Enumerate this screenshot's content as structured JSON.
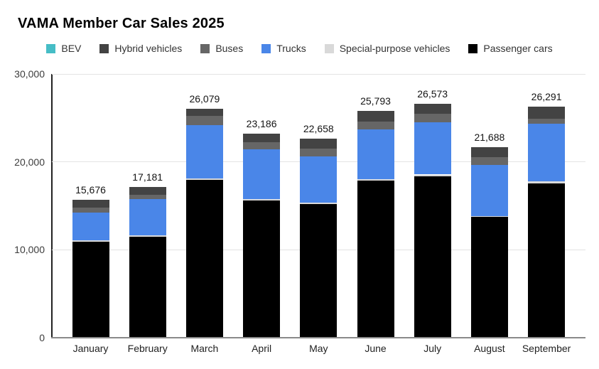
{
  "chart_data": {
    "type": "bar",
    "stacked": true,
    "title": "VAMA Member Car Sales 2025",
    "xlabel": "",
    "ylabel": "",
    "ylim": [
      0,
      30000
    ],
    "grid": true,
    "legend_position": "top",
    "categories": [
      "January",
      "February",
      "March",
      "April",
      "May",
      "June",
      "July",
      "August",
      "September"
    ],
    "totals": [
      15676,
      17181,
      26079,
      23186,
      22658,
      25793,
      26573,
      21688,
      26291
    ],
    "total_labels": [
      "15,676",
      "17,181",
      "26,079",
      "23,186",
      "22,658",
      "25,793",
      "26,573",
      "21,688",
      "26,291"
    ],
    "series": [
      {
        "name": "BEV",
        "color": "#46bdc6",
        "values": [
          0,
          0,
          0,
          0,
          0,
          0,
          0,
          0,
          0
        ]
      },
      {
        "name": "Hybrid vehicles",
        "color": "#434343",
        "values": [
          916,
          886,
          809,
          921,
          1148,
          1208,
          1078,
          1178,
          1421
        ]
      },
      {
        "name": "Buses",
        "color": "#666666",
        "values": [
          540,
          490,
          1130,
          865,
          860,
          915,
          1025,
          890,
          535
        ]
      },
      {
        "name": "Trucks",
        "color": "#4a86e8",
        "values": [
          3110,
          4170,
          6000,
          5670,
          5300,
          5610,
          5910,
          5780,
          6560
        ]
      },
      {
        "name": "Special-purpose vehicles",
        "color": "#d9d9d9",
        "values": [
          180,
          185,
          160,
          160,
          160,
          160,
          240,
          120,
          215
        ]
      },
      {
        "name": "Passenger cars",
        "color": "#000000",
        "values": [
          10930,
          11450,
          17980,
          15570,
          15190,
          17900,
          18320,
          13720,
          17560
        ]
      }
    ],
    "stack_order_bottom_to_top": [
      "Passenger cars",
      "Special-purpose vehicles",
      "Trucks",
      "Buses",
      "Hybrid vehicles",
      "BEV"
    ],
    "y_ticks": [
      {
        "value": 0,
        "label": "0"
      },
      {
        "value": 10000,
        "label": "10,000"
      },
      {
        "value": 20000,
        "label": "20,000"
      },
      {
        "value": 30000,
        "label": "30,000"
      }
    ]
  }
}
